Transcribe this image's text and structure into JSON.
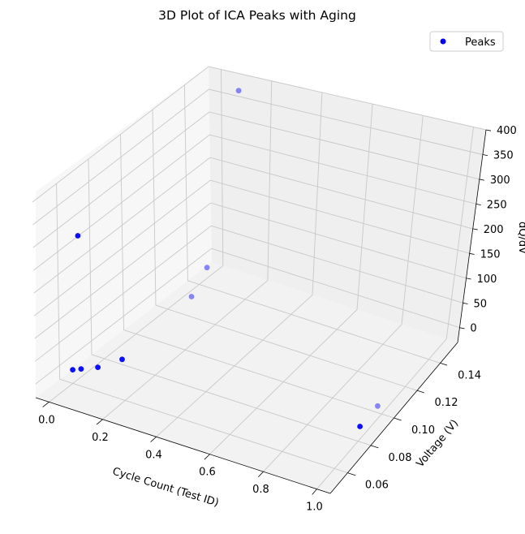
{
  "chart_data": {
    "type": "scatter3d",
    "title": "3D Plot of ICA Peaks with Aging",
    "xlabel": "Cycle Count (Test ID)",
    "ylabel": "Voltage (V)",
    "zlabel": "dQ/dV",
    "xlim": [
      -0.05,
      1.05
    ],
    "ylim": [
      0.045,
      0.155
    ],
    "zlim": [
      -30,
      400
    ],
    "x_ticks": [
      "0.0",
      "0.2",
      "0.4",
      "0.6",
      "0.8",
      "1.0"
    ],
    "y_ticks": [
      "0.06",
      "0.08",
      "0.10",
      "0.12",
      "0.14"
    ],
    "z_ticks": [
      "0",
      "50",
      "100",
      "150",
      "200",
      "250",
      "300",
      "350",
      "400"
    ],
    "grid": true,
    "legend": {
      "position": "top-right",
      "entries": [
        "Peaks"
      ]
    },
    "marker_color": "#0000ff",
    "series": [
      {
        "name": "Peaks",
        "points": [
          {
            "x": 0.0,
            "y": 0.06,
            "z": 0
          },
          {
            "x": 0.02,
            "y": 0.062,
            "z": 0
          },
          {
            "x": 0.06,
            "y": 0.066,
            "z": 0
          },
          {
            "x": 0.1,
            "y": 0.075,
            "z": 0
          },
          {
            "x": 0.1,
            "y": 0.12,
            "z": 14
          },
          {
            "x": 0.1,
            "y": 0.13,
            "z": 50
          },
          {
            "x": 0.05,
            "y": 0.055,
            "z": 315
          },
          {
            "x": 0.1,
            "y": 0.15,
            "z": 380
          },
          {
            "x": 1.0,
            "y": 0.08,
            "z": 0
          },
          {
            "x": 1.0,
            "y": 0.095,
            "z": 0
          }
        ]
      }
    ]
  }
}
